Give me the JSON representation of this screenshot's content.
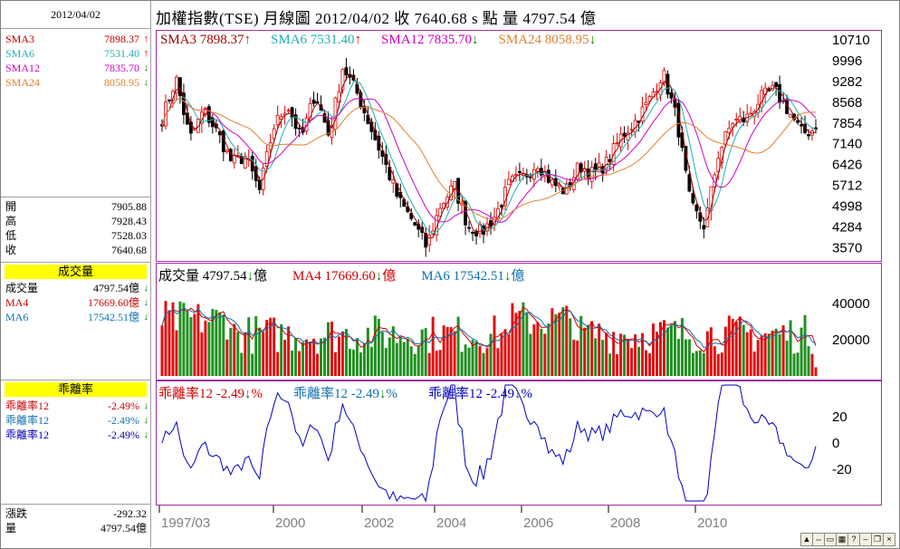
{
  "title": "加權指數(TSE)  月線圖  2012/04/02  收 7640.68 s 點  量 4797.54 億",
  "left": {
    "date": "2012/04/02",
    "sma": [
      {
        "label": "SMA3",
        "value": "7898.37",
        "arrow": "↑",
        "color": "#c00000"
      },
      {
        "label": "SMA6",
        "value": "7531.40",
        "arrow": "↑",
        "color": "#20b0b0"
      },
      {
        "label": "SMA12",
        "value": "7835.70",
        "arrow": "↓",
        "color": "#d000c0"
      },
      {
        "label": "SMA24",
        "value": "8058.95",
        "arrow": "↓",
        "color": "#e08030"
      }
    ],
    "ohlc": [
      {
        "label": "開",
        "value": "7905.88"
      },
      {
        "label": "高",
        "value": "7928.43"
      },
      {
        "label": "低",
        "value": "7528.03"
      },
      {
        "label": "收",
        "value": "7640.68"
      }
    ],
    "vol_header": "成交量",
    "vol": [
      {
        "label": "成交量",
        "value": "4797.54億",
        "arrow": "↓",
        "color": "#000000"
      },
      {
        "label": "MA4",
        "value": "17669.60億",
        "arrow": "↓",
        "color": "#d00000"
      },
      {
        "label": "MA6",
        "value": "17542.51億",
        "arrow": "↓",
        "color": "#1070b0"
      }
    ],
    "bias_header": "乖離率",
    "bias": [
      {
        "label": "乖離率12",
        "value": "-2.49%",
        "arrow": "↓",
        "color": "#d00000"
      },
      {
        "label": "乖離率12",
        "value": "-2.49%",
        "arrow": "↓",
        "color": "#1070b0"
      },
      {
        "label": "乖離率12",
        "value": "-2.49%",
        "arrow": "↓",
        "color": "#0000c0"
      }
    ],
    "change": [
      {
        "label": "漲跌",
        "value": "-292.32"
      },
      {
        "label": "量",
        "value": "4797.54億"
      }
    ]
  },
  "price_legend": [
    {
      "text": "SMA3 7898.37",
      "arrow": "↑",
      "color": "#a00000"
    },
    {
      "text": "SMA6 7531.40",
      "arrow": "↑",
      "color": "#20b0b0"
    },
    {
      "text": "SMA12 7835.70",
      "arrow": "↓",
      "color": "#d000c0"
    },
    {
      "text": "SMA24 8058.95",
      "arrow": "↓",
      "color": "#e08030"
    }
  ],
  "vol_legend": [
    {
      "text": "成交量 4797.54",
      "suffix": "億",
      "arrow": "↓",
      "color": "#000000"
    },
    {
      "text": "MA4 17669.60",
      "suffix": "億",
      "arrow": "↓",
      "color": "#d00000"
    },
    {
      "text": "MA6 17542.51",
      "suffix": "億",
      "arrow": "↓",
      "color": "#1070b0"
    }
  ],
  "bias_legend": [
    {
      "label": "乖離率12",
      "value": "-2.49",
      "arrow": "↓",
      "suffix": "%",
      "color": "#d00000"
    },
    {
      "label": "乖離率12",
      "value": "-2.49",
      "arrow": "↓",
      "suffix": "%",
      "color": "#1070b0"
    },
    {
      "label": "乖離率12",
      "value": "-2.49",
      "arrow": "↓",
      "suffix": "%",
      "color": "#0000c0"
    }
  ],
  "x_ticks": [
    "1997/03",
    "2000",
    "2002",
    "2004",
    "2006",
    "2008",
    "2010"
  ],
  "chart_data": {
    "type": "line",
    "price": {
      "y_ticks": [
        10710,
        9996,
        9282,
        8568,
        7854,
        7140,
        6426,
        5712,
        4998,
        4284,
        3570
      ],
      "ylim": [
        3300,
        10900
      ],
      "close_approx": [
        8000,
        9400,
        7300,
        8300,
        7500,
        6500,
        6700,
        5500,
        7700,
        8500,
        7300,
        8900,
        7400,
        9800,
        8900,
        7700,
        6500,
        5200,
        4500,
        3600,
        5000,
        5700,
        4300,
        4100,
        4700,
        5800,
        6000,
        6500,
        5800,
        5500,
        6400,
        6100,
        6500,
        7400,
        7900,
        8600,
        9600,
        8000,
        5000,
        4300,
        6800,
        7900,
        8000,
        8700,
        9000,
        8300,
        7500,
        7640
      ]
    },
    "volume": {
      "y_ticks": [
        40000,
        20000
      ],
      "ylim": [
        0,
        52000
      ],
      "last": 4797.54
    },
    "bias": {
      "y_ticks": [
        20,
        0,
        -20
      ],
      "ylim": [
        -40,
        40
      ],
      "last": -2.49
    }
  },
  "toolbar_icons": [
    "zoom-icon",
    "scroll-icon",
    "window-icon",
    "calendar-icon",
    "help-icon",
    "minimize-icon",
    "restore-icon",
    "close-icon"
  ]
}
